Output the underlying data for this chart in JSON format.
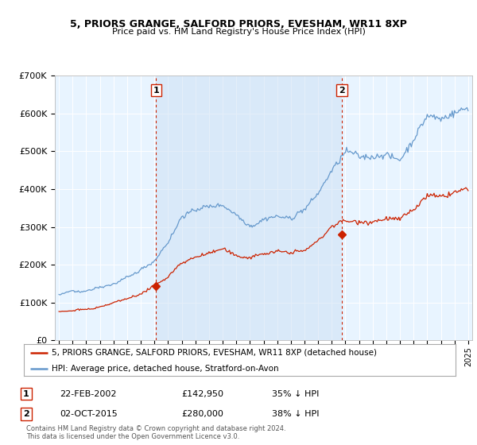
{
  "title": "5, PRIORS GRANGE, SALFORD PRIORS, EVESHAM, WR11 8XP",
  "subtitle": "Price paid vs. HM Land Registry's House Price Index (HPI)",
  "legend_line1": "5, PRIORS GRANGE, SALFORD PRIORS, EVESHAM, WR11 8XP (detached house)",
  "legend_line2": "HPI: Average price, detached house, Stratford-on-Avon",
  "annotation1_label": "1",
  "annotation1_date": "22-FEB-2002",
  "annotation1_price": "£142,950",
  "annotation1_hpi": "35% ↓ HPI",
  "annotation2_label": "2",
  "annotation2_date": "02-OCT-2015",
  "annotation2_price": "£280,000",
  "annotation2_hpi": "38% ↓ HPI",
  "footer": "Contains HM Land Registry data © Crown copyright and database right 2024.\nThis data is licensed under the Open Government Licence v3.0.",
  "hpi_color": "#6699cc",
  "sale_color": "#cc2200",
  "vline_color": "#cc2200",
  "shade_color": "#ddeeff",
  "plot_bg_color": "#e8f0f8",
  "ylim": [
    0,
    700000
  ],
  "yticks": [
    0,
    100000,
    200000,
    300000,
    400000,
    500000,
    600000,
    700000
  ],
  "ytick_labels": [
    "£0",
    "£100K",
    "£200K",
    "£300K",
    "£400K",
    "£500K",
    "£600K",
    "£700K"
  ],
  "xlim_left": 1994.7,
  "xlim_right": 2025.3,
  "sale1_x": 2002.13,
  "sale1_y": 142950,
  "sale2_x": 2015.75,
  "sale2_y": 280000,
  "vline1_x": 2002.13,
  "vline2_x": 2015.75
}
